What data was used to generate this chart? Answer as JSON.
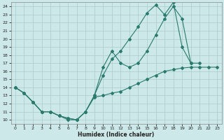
{
  "xlabel": "Humidex (Indice chaleur)",
  "bg_color": "#cce8e8",
  "grid_color": "#aacccc",
  "line_color": "#2a7a6e",
  "xlim": [
    -0.5,
    23.5
  ],
  "ylim": [
    9.5,
    24.5
  ],
  "xticks": [
    0,
    1,
    2,
    3,
    4,
    5,
    6,
    7,
    8,
    9,
    10,
    11,
    12,
    13,
    14,
    15,
    16,
    17,
    18,
    19,
    20,
    21,
    22,
    23
  ],
  "yticks": [
    10,
    11,
    12,
    13,
    14,
    15,
    16,
    17,
    18,
    19,
    20,
    21,
    22,
    23,
    24
  ],
  "curve1_x": [
    0,
    1,
    2,
    3,
    4,
    5,
    6,
    7,
    8,
    9,
    10,
    11,
    12,
    13,
    14,
    15,
    16,
    17,
    18,
    19,
    20,
    21,
    22,
    23
  ],
  "curve1_y": [
    14.0,
    13.3,
    12.2,
    11.0,
    11.0,
    10.5,
    10.2,
    10.0,
    11.0,
    12.8,
    13.0,
    13.3,
    13.5,
    14.0,
    14.5,
    15.0,
    15.5,
    16.0,
    16.2,
    16.4,
    16.5,
    16.5,
    16.5,
    16.5
  ],
  "curve2_x": [
    0,
    1,
    2,
    3,
    4,
    5,
    6,
    7,
    8,
    9,
    10,
    11,
    12,
    13,
    14,
    15,
    16,
    17,
    18,
    19,
    20
  ],
  "curve2_y": [
    14.0,
    13.3,
    12.2,
    11.0,
    11.0,
    10.5,
    10.2,
    10.0,
    11.0,
    13.0,
    16.5,
    18.5,
    17.0,
    16.5,
    17.0,
    18.5,
    20.5,
    22.5,
    24.0,
    22.5,
    17.0
  ],
  "curve3_x": [
    0,
    1,
    2,
    3,
    4,
    5,
    6,
    7,
    8,
    9,
    10,
    11,
    12,
    13,
    14,
    15,
    16,
    17,
    18,
    19,
    20,
    21,
    22,
    23
  ],
  "curve3_y": [
    14.0,
    13.3,
    12.2,
    11.0,
    11.0,
    10.5,
    10.0,
    10.0,
    11.0,
    13.0,
    15.5,
    17.5,
    18.5,
    20.0,
    21.5,
    23.2,
    24.2,
    23.0,
    24.5,
    19.0,
    17.0,
    17.0,
    null,
    null
  ]
}
